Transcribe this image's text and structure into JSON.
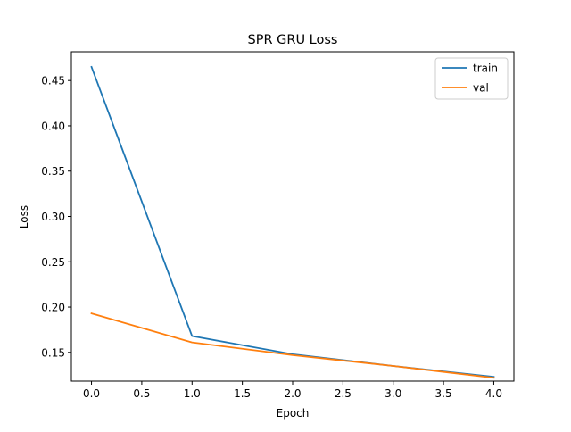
{
  "chart_data": {
    "type": "line",
    "title": "SPR GRU Loss",
    "xlabel": "Epoch",
    "ylabel": "Loss",
    "x": [
      0,
      1,
      2,
      3,
      4
    ],
    "series": [
      {
        "name": "train",
        "color": "#1f77b4",
        "values": [
          0.465,
          0.168,
          0.148,
          0.135,
          0.123
        ]
      },
      {
        "name": "val",
        "color": "#ff7f0e",
        "values": [
          0.193,
          0.161,
          0.147,
          0.135,
          0.122
        ]
      }
    ],
    "xlim": [
      -0.2,
      4.2
    ],
    "ylim": [
      0.1183,
      0.4817
    ],
    "xticks": [
      "0.0",
      "0.5",
      "1.0",
      "1.5",
      "2.0",
      "2.5",
      "3.0",
      "3.5",
      "4.0"
    ],
    "yticks": [
      "0.15",
      "0.20",
      "0.25",
      "0.30",
      "0.35",
      "0.40",
      "0.45"
    ],
    "grid": false,
    "legend_position": "top-right"
  }
}
